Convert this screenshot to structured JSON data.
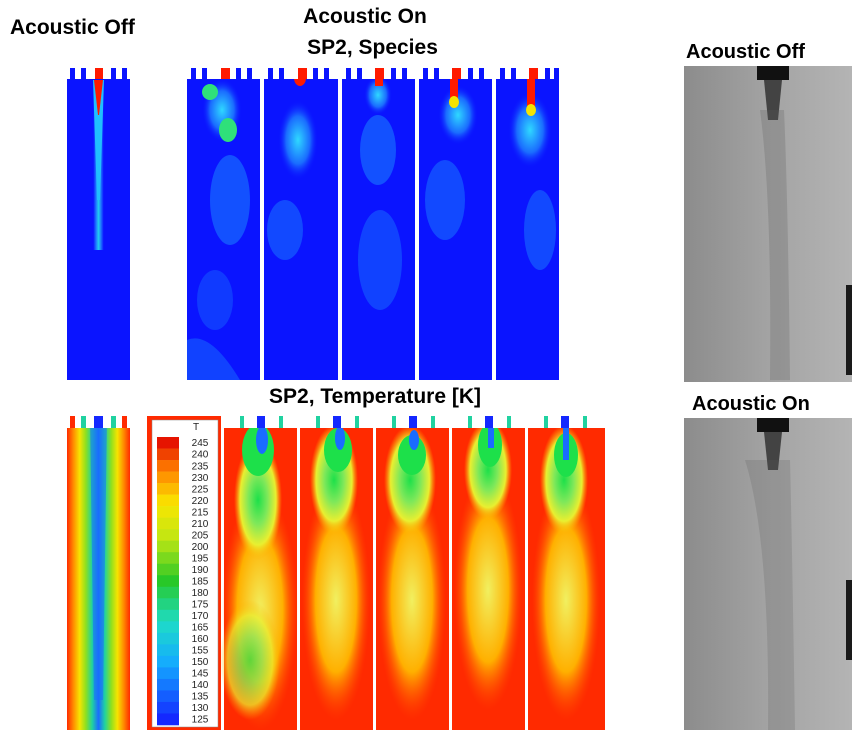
{
  "labels": {
    "acoustic_off_left": "Acoustic Off",
    "acoustic_on_header_line1": "Acoustic On",
    "acoustic_on_header_line2": "SP2, Species",
    "temperature_title": "SP2, Temperature [K]",
    "photo_acoustic_off": "Acoustic Off",
    "photo_acoustic_on": "Acoustic On"
  },
  "colorbar": {
    "title": "T",
    "ticks": [
      "245",
      "240",
      "235",
      "230",
      "225",
      "220",
      "215",
      "210",
      "205",
      "200",
      "195",
      "190",
      "185",
      "180",
      "175",
      "170",
      "165",
      "160",
      "155",
      "150",
      "145",
      "140",
      "135",
      "130",
      "125"
    ]
  },
  "colors": {
    "species_background": "#0a14ff",
    "temperature_background": "#ff2a00"
  }
}
